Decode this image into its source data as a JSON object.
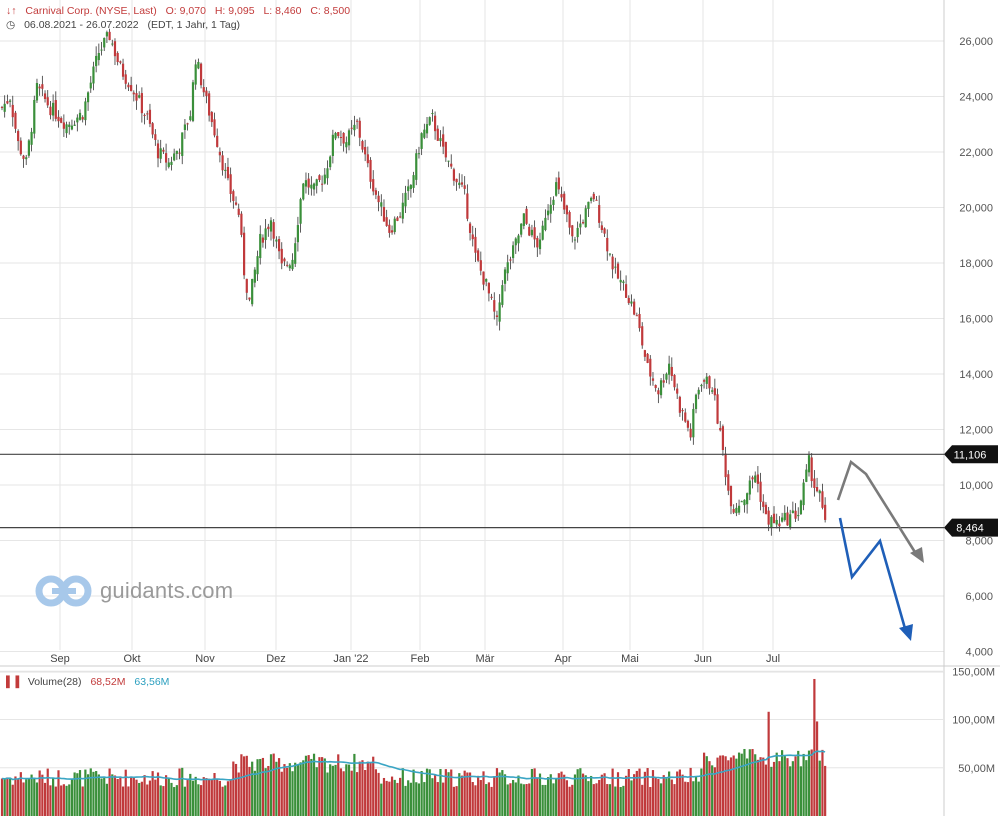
{
  "header": {
    "instrument": "Carnival Corp. (NYSE, Last)",
    "open": "O: 9,070",
    "high": "H: 9,095",
    "low": "L: 8,460",
    "close": "C: 8,500",
    "range": "06.08.2021 - 26.07.2022",
    "mode": "(EDT, 1 Jahr, 1 Tag)"
  },
  "volume_header": {
    "label": "Volume(28)",
    "value": "68,52M",
    "avg": "63,56M"
  },
  "logo": {
    "text": "guidants.com"
  },
  "colors": {
    "up": "#3a8f3a",
    "down": "#c0393b",
    "avg_line": "#3aa5c4",
    "grid": "#e6e6e6",
    "arrow_gray": "#7a7a7a",
    "arrow_blue": "#1f5fb8"
  },
  "chart_data": {
    "type": "candlestick",
    "price_axis": {
      "ticks": [
        "26,000",
        "24,000",
        "22,000",
        "20,000",
        "18,000",
        "16,000",
        "14,000",
        "12,000",
        "10,000",
        "8,000",
        "6,000",
        "4,000"
      ],
      "ylim": [
        3700,
        27000
      ]
    },
    "x_ticks": [
      "Sep",
      "Okt",
      "Nov",
      "Dez",
      "Jan '22",
      "Feb",
      "Mär",
      "Apr",
      "Mai",
      "Jun",
      "Jul"
    ],
    "levels": [
      {
        "label": "11,106",
        "value": 11.106
      },
      {
        "label": "8,464",
        "value": 8.464
      }
    ],
    "volume_axis": {
      "ticks": [
        "150,00M",
        "100,00M",
        "50,00M"
      ],
      "ylim": [
        0,
        150
      ]
    },
    "anchors": [
      [
        0,
        23.6
      ],
      [
        3,
        24.0
      ],
      [
        6,
        22.3
      ],
      [
        9,
        21.6
      ],
      [
        13,
        24.3
      ],
      [
        18,
        23.6
      ],
      [
        24,
        23.0
      ],
      [
        30,
        23.4
      ],
      [
        36,
        25.6
      ],
      [
        40,
        26.2
      ],
      [
        44,
        25.0
      ],
      [
        48,
        24.4
      ],
      [
        54,
        23.2
      ],
      [
        58,
        22.0
      ],
      [
        62,
        21.6
      ],
      [
        66,
        22.2
      ],
      [
        70,
        23.4
      ],
      [
        72,
        25.4
      ],
      [
        76,
        23.8
      ],
      [
        80,
        22.4
      ],
      [
        84,
        20.8
      ],
      [
        88,
        19.8
      ],
      [
        90,
        17.7
      ],
      [
        92,
        16.6
      ],
      [
        96,
        18.8
      ],
      [
        100,
        19.6
      ],
      [
        104,
        17.8
      ],
      [
        108,
        18.2
      ],
      [
        112,
        21.0
      ],
      [
        116,
        20.6
      ],
      [
        120,
        21.2
      ],
      [
        124,
        22.8
      ],
      [
        128,
        22.4
      ],
      [
        132,
        23.0
      ],
      [
        136,
        21.4
      ],
      [
        140,
        20.2
      ],
      [
        144,
        19.2
      ],
      [
        148,
        19.8
      ],
      [
        152,
        20.8
      ],
      [
        156,
        22.6
      ],
      [
        160,
        23.2
      ],
      [
        164,
        22.0
      ],
      [
        168,
        21.2
      ],
      [
        172,
        20.4
      ],
      [
        176,
        18.2
      ],
      [
        180,
        17.2
      ],
      [
        184,
        15.8
      ],
      [
        186,
        17.4
      ],
      [
        190,
        18.4
      ],
      [
        194,
        19.6
      ],
      [
        198,
        18.8
      ],
      [
        200,
        18.6
      ],
      [
        202,
        19.8
      ],
      [
        206,
        20.8
      ],
      [
        210,
        19.6
      ],
      [
        212,
        18.8
      ],
      [
        216,
        19.6
      ],
      [
        220,
        20.4
      ],
      [
        224,
        19.0
      ],
      [
        228,
        17.6
      ],
      [
        232,
        17.0
      ],
      [
        236,
        16.0
      ],
      [
        240,
        14.2
      ],
      [
        244,
        13.4
      ],
      [
        248,
        14.4
      ],
      [
        252,
        12.8
      ],
      [
        256,
        11.8
      ],
      [
        258,
        13.2
      ],
      [
        260,
        13.8
      ],
      [
        264,
        13.6
      ],
      [
        266,
        12.4
      ],
      [
        268,
        11.2
      ],
      [
        270,
        9.8
      ],
      [
        272,
        9.2
      ],
      [
        276,
        9.6
      ],
      [
        280,
        10.4
      ],
      [
        284,
        8.8
      ],
      [
        288,
        8.6
      ],
      [
        292,
        8.8
      ],
      [
        296,
        9.0
      ],
      [
        300,
        10.8
      ],
      [
        302,
        10.0
      ],
      [
        304,
        9.6
      ],
      [
        306,
        8.5
      ]
    ]
  }
}
